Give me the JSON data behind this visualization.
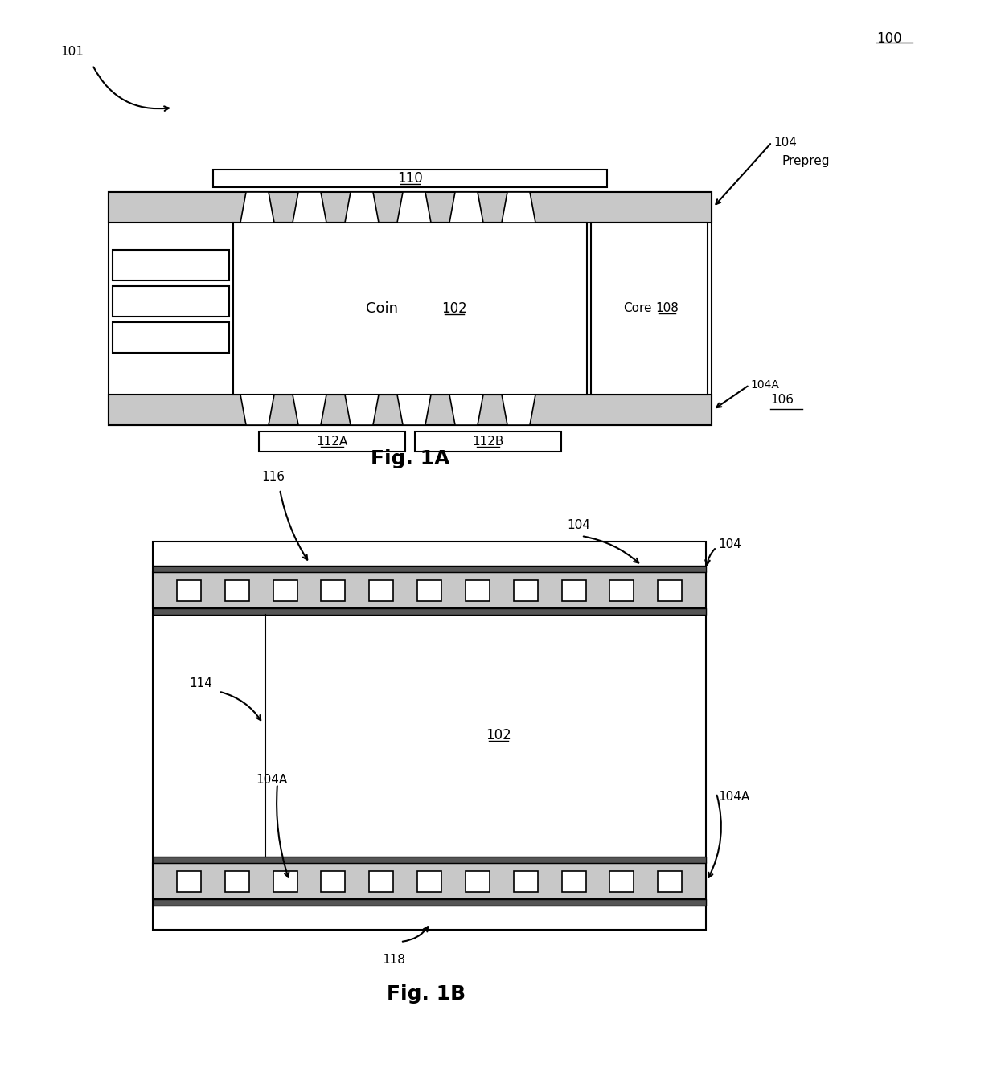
{
  "bg_color": "#ffffff",
  "line_color": "#000000",
  "gray_light": "#c8c8c8",
  "fig_width": 12.4,
  "fig_height": 13.49,
  "fig1a_label": "Fig. 1A",
  "fig1b_label": "Fig. 1B",
  "label_100": "100",
  "label_101": "101",
  "label_102": "102",
  "label_104": "104",
  "label_104A": "104A",
  "label_106": "106",
  "label_108": "108",
  "label_110": "110",
  "label_112A": "112A",
  "label_112B": "112B",
  "label_114": "114",
  "label_116": "116",
  "label_118": "118",
  "label_prepreg": "Prepreg",
  "label_coin": "Coin",
  "label_core": "Core"
}
